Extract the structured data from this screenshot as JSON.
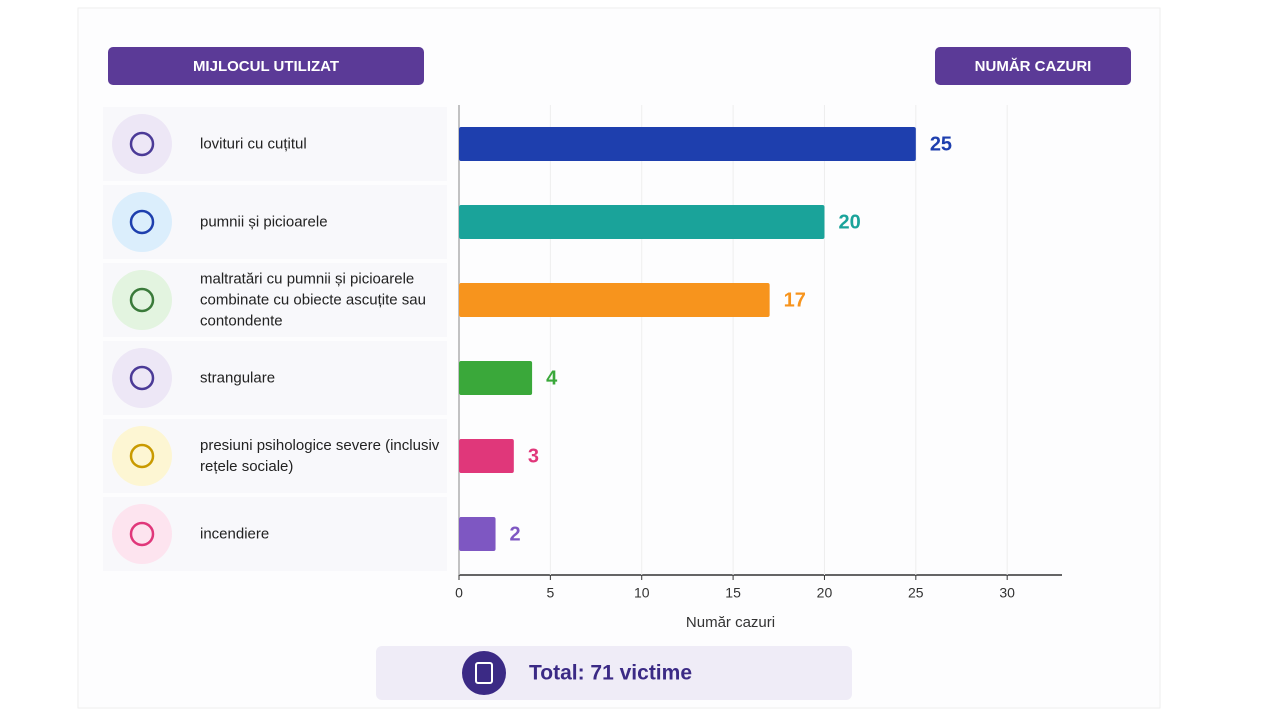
{
  "header": {
    "left": "MIJLOCUL UTILIZAT",
    "right": "NUMĂR CAZURI"
  },
  "chart_data": {
    "type": "bar",
    "orientation": "horizontal",
    "categories": [
      "lovituri cu cuțitul",
      "pumnii și picioarele",
      "maltratări cu pumnii și picioarele combinate cu obiecte ascuțite sau contondente",
      "strangulare",
      "presiuni psihologice severe (inclusiv rețele sociale)",
      "incendiere"
    ],
    "values": [
      25,
      20,
      17,
      4,
      3,
      2
    ],
    "colors": [
      "#1e3fae",
      "#1aa39a",
      "#f7941d",
      "#3aa83a",
      "#e0377a",
      "#7e57c2"
    ],
    "xlim": [
      0,
      33
    ],
    "xticks": [
      0,
      5,
      10,
      15,
      20,
      25,
      30
    ],
    "xlabel": "Număr cazuri"
  },
  "footer": {
    "total": "Total: 71 victime"
  }
}
